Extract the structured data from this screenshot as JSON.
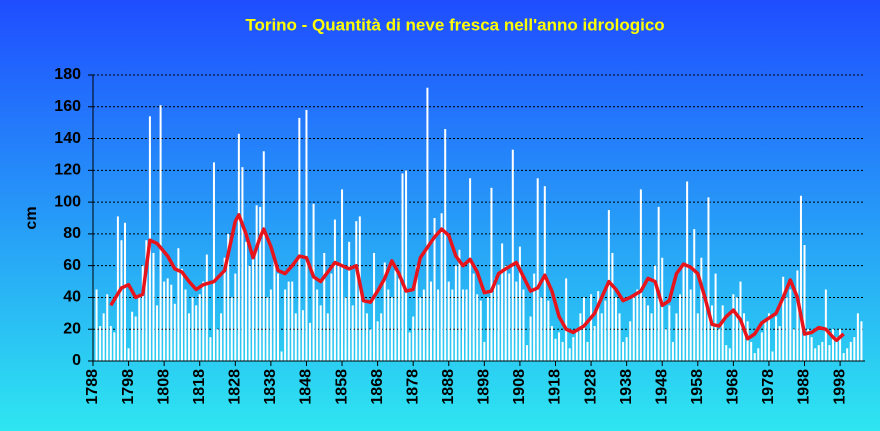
{
  "chart_data": {
    "type": "bar",
    "title": "Torino - Quantità di neve fresca nell'anno idrologico",
    "y_label": "cm",
    "x": [
      1789,
      1790,
      1791,
      1792,
      1793,
      1794,
      1795,
      1796,
      1797,
      1798,
      1799,
      1800,
      1801,
      1802,
      1803,
      1804,
      1805,
      1806,
      1807,
      1808,
      1809,
      1810,
      1811,
      1812,
      1813,
      1814,
      1815,
      1816,
      1817,
      1818,
      1819,
      1820,
      1821,
      1822,
      1823,
      1824,
      1825,
      1826,
      1827,
      1828,
      1829,
      1830,
      1831,
      1832,
      1833,
      1834,
      1835,
      1836,
      1837,
      1838,
      1839,
      1840,
      1841,
      1842,
      1843,
      1844,
      1845,
      1846,
      1847,
      1848,
      1849,
      1850,
      1851,
      1852,
      1853,
      1854,
      1855,
      1856,
      1857,
      1858,
      1859,
      1860,
      1861,
      1862,
      1863,
      1864,
      1865,
      1866,
      1867,
      1868,
      1869,
      1870,
      1871,
      1872,
      1873,
      1874,
      1875,
      1876,
      1877,
      1878,
      1879,
      1880,
      1881,
      1882,
      1883,
      1884,
      1885,
      1886,
      1887,
      1888,
      1889,
      1890,
      1891,
      1892,
      1893,
      1894,
      1895,
      1896,
      1897,
      1898,
      1899,
      1900,
      1901,
      1902,
      1903,
      1904,
      1905,
      1906,
      1907,
      1908,
      1909,
      1910,
      1911,
      1912,
      1913,
      1914,
      1915,
      1916,
      1917,
      1918,
      1919,
      1920,
      1921,
      1922,
      1923,
      1924,
      1925,
      1926,
      1927,
      1928,
      1929,
      1930,
      1931,
      1932,
      1933,
      1934,
      1935,
      1936,
      1937,
      1938,
      1939,
      1940,
      1941,
      1942,
      1943,
      1944,
      1945,
      1946,
      1947,
      1948,
      1949,
      1950,
      1951,
      1952,
      1953,
      1954,
      1955,
      1956,
      1957,
      1958,
      1959,
      1960,
      1961,
      1962,
      1963,
      1964,
      1965,
      1966,
      1967,
      1968,
      1969,
      1970,
      1971,
      1972,
      1973,
      1974,
      1975,
      1976,
      1977,
      1978,
      1979,
      1980,
      1981,
      1982,
      1983,
      1984,
      1985,
      1986,
      1987,
      1988,
      1989,
      1990,
      1991,
      1992,
      1993,
      1994,
      1995,
      1996,
      1997,
      1998,
      1999,
      2000,
      2001,
      2002,
      2003,
      2004
    ],
    "xlim": [
      1788,
      2005
    ],
    "xticks": [
      1788,
      1798,
      1808,
      1818,
      1828,
      1838,
      1848,
      1858,
      1868,
      1878,
      1888,
      1898,
      1908,
      1918,
      1928,
      1938,
      1948,
      1958,
      1968,
      1978,
      1988,
      1998
    ],
    "ylim": [
      0,
      180
    ],
    "yticks": [
      0,
      20,
      40,
      60,
      80,
      100,
      120,
      140,
      160,
      180
    ],
    "grid": true,
    "series": [
      {
        "type": "bar",
        "color": "#ffffff",
        "values": [
          45,
          22,
          30,
          42,
          22,
          18,
          91,
          76,
          87,
          8,
          31,
          28,
          40,
          60,
          76,
          154,
          68,
          35,
          161,
          50,
          52,
          48,
          36,
          71,
          58,
          45,
          30,
          40,
          35,
          42,
          50,
          67,
          15,
          125,
          20,
          30,
          65,
          80,
          40,
          55,
          143,
          122,
          75,
          60,
          65,
          98,
          97,
          132,
          40,
          45,
          65,
          55,
          6,
          45,
          50,
          50,
          30,
          153,
          32,
          158,
          24,
          99,
          45,
          35,
          68,
          30,
          55,
          89,
          62,
          108,
          40,
          75,
          35,
          88,
          91,
          40,
          30,
          20,
          68,
          25,
          30,
          62,
          45,
          40,
          57,
          52,
          118,
          120,
          18,
          28,
          60,
          40,
          45,
          172,
          50,
          90,
          45,
          93,
          146,
          50,
          45,
          60,
          70,
          45,
          45,
          115,
          55,
          42,
          38,
          12,
          40,
          109,
          52,
          48,
          74,
          60,
          55,
          133,
          50,
          72,
          45,
          10,
          28,
          55,
          115,
          40,
          110,
          38,
          22,
          14,
          18,
          12,
          52,
          8,
          15,
          20,
          30,
          40,
          12,
          42,
          22,
          44,
          30,
          38,
          95,
          68,
          40,
          30,
          12,
          15,
          25,
          40,
          45,
          108,
          40,
          35,
          30,
          60,
          97,
          65,
          20,
          35,
          12,
          30,
          42,
          62,
          113,
          45,
          83,
          30,
          65,
          40,
          103,
          35,
          55,
          20,
          35,
          10,
          8,
          42,
          40,
          50,
          30,
          25,
          12,
          5,
          8,
          18,
          25,
          30,
          6,
          28,
          22,
          53,
          40,
          45,
          20,
          57,
          104,
          73,
          20,
          15,
          8,
          10,
          12,
          45,
          10,
          20,
          15,
          20,
          5,
          8,
          12,
          15,
          30,
          25
        ]
      },
      {
        "type": "line",
        "color": "#e8141c",
        "x": [
          1793,
          1796,
          1798,
          1800,
          1802,
          1804,
          1806,
          1809,
          1811,
          1813,
          1815,
          1817,
          1819,
          1822,
          1825,
          1828,
          1829,
          1831,
          1833,
          1835,
          1836,
          1838,
          1840,
          1842,
          1844,
          1846,
          1848,
          1850,
          1852,
          1854,
          1856,
          1858,
          1860,
          1862,
          1864,
          1866,
          1868,
          1870,
          1872,
          1874,
          1876,
          1878,
          1880,
          1884,
          1886,
          1888,
          1890,
          1892,
          1894,
          1896,
          1898,
          1900,
          1902,
          1904,
          1907,
          1909,
          1911,
          1913,
          1915,
          1917,
          1919,
          1921,
          1923,
          1926,
          1929,
          1931,
          1933,
          1935,
          1937,
          1939,
          1942,
          1944,
          1946,
          1948,
          1950,
          1952,
          1954,
          1956,
          1958,
          1960,
          1962,
          1964,
          1966,
          1968,
          1970,
          1972,
          1974,
          1976,
          1978,
          1980,
          1982,
          1984,
          1986,
          1988,
          1990,
          1992,
          1994,
          1996,
          1997,
          1999
        ],
        "values": [
          35,
          46,
          48,
          40,
          42,
          76,
          74,
          66,
          58,
          56,
          50,
          45,
          48,
          50,
          57,
          88,
          92,
          80,
          65,
          78,
          83,
          72,
          57,
          55,
          60,
          66,
          65,
          53,
          50,
          56,
          62,
          60,
          58,
          60,
          38,
          37,
          44,
          52,
          63,
          55,
          44,
          45,
          65,
          78,
          83,
          79,
          66,
          60,
          64,
          56,
          43,
          44,
          55,
          58,
          62,
          53,
          44,
          46,
          54,
          44,
          28,
          20,
          18,
          22,
          30,
          40,
          50,
          45,
          38,
          40,
          44,
          52,
          50,
          35,
          38,
          55,
          61,
          59,
          55,
          40,
          23,
          22,
          28,
          32,
          26,
          14,
          17,
          24,
          27,
          30,
          40,
          51,
          40,
          17,
          18,
          21,
          20,
          15,
          13,
          17
        ]
      }
    ]
  }
}
